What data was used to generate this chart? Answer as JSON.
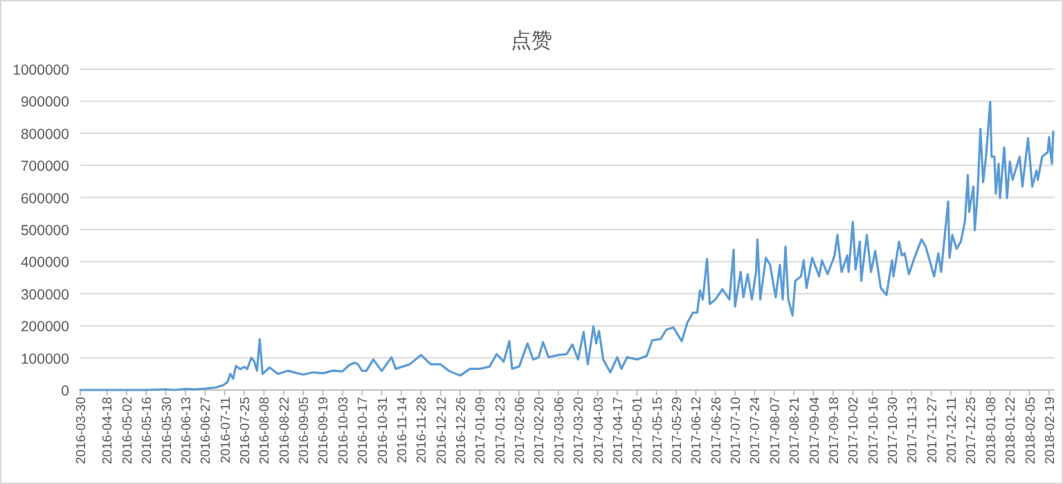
{
  "chart_data": {
    "type": "line",
    "title": "点赞",
    "x": [
      "2016-03-30",
      "2016-04-20",
      "2016-05-15",
      "2016-05-30",
      "2016-06-05",
      "2016-06-13",
      "2016-06-20",
      "2016-06-27",
      "2016-07-05",
      "2016-07-10",
      "2016-07-13",
      "2016-07-15",
      "2016-07-17",
      "2016-07-19",
      "2016-07-22",
      "2016-07-25",
      "2016-07-27",
      "2016-07-30",
      "2016-08-01",
      "2016-08-03",
      "2016-08-05",
      "2016-08-07",
      "2016-08-12",
      "2016-08-18",
      "2016-08-25",
      "2016-09-01",
      "2016-09-05",
      "2016-09-12",
      "2016-09-19",
      "2016-09-26",
      "2016-10-03",
      "2016-10-08",
      "2016-10-12",
      "2016-10-14",
      "2016-10-17",
      "2016-10-20",
      "2016-10-25",
      "2016-10-31",
      "2016-11-07",
      "2016-11-10",
      "2016-11-20",
      "2016-11-28",
      "2016-12-05",
      "2016-12-12",
      "2016-12-18",
      "2016-12-26",
      "2017-01-02",
      "2017-01-09",
      "2017-01-16",
      "2017-01-21",
      "2017-01-26",
      "2017-01-30",
      "2017-02-01",
      "2017-02-06",
      "2017-02-12",
      "2017-02-16",
      "2017-02-20",
      "2017-02-23",
      "2017-02-27",
      "2017-03-06",
      "2017-03-12",
      "2017-03-16",
      "2017-03-20",
      "2017-03-24",
      "2017-03-27",
      "2017-03-31",
      "2017-04-02",
      "2017-04-04",
      "2017-04-07",
      "2017-04-12",
      "2017-04-17",
      "2017-04-20",
      "2017-04-24",
      "2017-05-01",
      "2017-05-08",
      "2017-05-12",
      "2017-05-18",
      "2017-05-22",
      "2017-05-27",
      "2017-06-02",
      "2017-06-06",
      "2017-06-10",
      "2017-06-13",
      "2017-06-15",
      "2017-06-17",
      "2017-06-20",
      "2017-06-22",
      "2017-06-26",
      "2017-07-01",
      "2017-07-06",
      "2017-07-09",
      "2017-07-10",
      "2017-07-14",
      "2017-07-16",
      "2017-07-19",
      "2017-07-22",
      "2017-07-25",
      "2017-07-26",
      "2017-07-28",
      "2017-08-01",
      "2017-08-04",
      "2017-08-08",
      "2017-08-11",
      "2017-08-13",
      "2017-08-15",
      "2017-08-17",
      "2017-08-20",
      "2017-08-22",
      "2017-08-26",
      "2017-08-28",
      "2017-08-30",
      "2017-09-03",
      "2017-09-08",
      "2017-09-10",
      "2017-09-14",
      "2017-09-19",
      "2017-09-21",
      "2017-09-24",
      "2017-09-28",
      "2017-09-29",
      "2017-10-02",
      "2017-10-04",
      "2017-10-07",
      "2017-10-08",
      "2017-10-12",
      "2017-10-15",
      "2017-10-18",
      "2017-10-22",
      "2017-10-26",
      "2017-10-30",
      "2017-10-31",
      "2017-11-04",
      "2017-11-06",
      "2017-11-08",
      "2017-11-11",
      "2017-11-15",
      "2017-11-20",
      "2017-11-23",
      "2017-11-29",
      "2017-12-02",
      "2017-12-04",
      "2017-12-09",
      "2017-12-10",
      "2017-12-12",
      "2017-12-15",
      "2017-12-18",
      "2017-12-21",
      "2017-12-23",
      "2017-12-24",
      "2017-12-27",
      "2017-12-28",
      "2017-12-30",
      "2018-01-01",
      "2018-01-03",
      "2018-01-05",
      "2018-01-08",
      "2018-01-09",
      "2018-01-11",
      "2018-01-12",
      "2018-01-14",
      "2018-01-15",
      "2018-01-18",
      "2018-01-20",
      "2018-01-22",
      "2018-01-24",
      "2018-01-26",
      "2018-01-29",
      "2018-01-31",
      "2018-02-04",
      "2018-02-07",
      "2018-02-10",
      "2018-02-11",
      "2018-02-14",
      "2018-02-18",
      "2018-02-19",
      "2018-02-20",
      "2018-02-21",
      "2018-02-22"
    ],
    "series": [
      {
        "color": "#5b9bd5",
        "values": [
          0,
          0,
          0,
          2000,
          0,
          3000,
          2000,
          4000,
          8000,
          15000,
          25000,
          50000,
          35000,
          75000,
          65000,
          72000,
          65000,
          100000,
          90000,
          60000,
          158000,
          50000,
          70000,
          50000,
          60000,
          52000,
          48000,
          55000,
          52000,
          60000,
          58000,
          78000,
          85000,
          80000,
          60000,
          59000,
          95000,
          59000,
          102000,
          66000,
          80000,
          109000,
          80000,
          80000,
          59000,
          45000,
          66000,
          66000,
          73000,
          112000,
          88000,
          152000,
          66000,
          73000,
          145000,
          95000,
          102000,
          149000,
          102000,
          109000,
          112000,
          142000,
          95000,
          181000,
          80000,
          198000,
          145000,
          184000,
          95000,
          55000,
          102000,
          66000,
          102000,
          95000,
          106000,
          155000,
          159000,
          188000,
          195000,
          152000,
          210000,
          241000,
          241000,
          310000,
          282000,
          408000,
          268000,
          282000,
          314000,
          282000,
          437000,
          260000,
          368000,
          289000,
          361000,
          282000,
          368000,
          469000,
          282000,
          412000,
          390000,
          289000,
          390000,
          282000,
          447000,
          282000,
          232000,
          340000,
          354000,
          404000,
          318000,
          412000,
          354000,
          404000,
          361000,
          419000,
          483000,
          368000,
          419000,
          368000,
          524000,
          376000,
          462000,
          340000,
          483000,
          368000,
          433000,
          318000,
          296000,
          404000,
          354000,
          462000,
          419000,
          426000,
          361000,
          412000,
          469000,
          447000,
          354000,
          426000,
          368000,
          587000,
          412000,
          483000,
          440000,
          462000,
          527000,
          670000,
          555000,
          634000,
          498000,
          612000,
          814000,
          648000,
          727000,
          898000,
          727000,
          727000,
          612000,
          705000,
          598000,
          756000,
          598000,
          712000,
          655000,
          684000,
          727000,
          634000,
          785000,
          634000,
          684000,
          655000,
          727000,
          741000,
          788000,
          741000,
          705000,
          806000
        ]
      }
    ],
    "xlim": [
      "2016-03-30",
      "2018-02-23"
    ],
    "xticks": [
      "2016-03-30",
      "2016-04-18",
      "2016-05-02",
      "2016-05-16",
      "2016-05-30",
      "2016-06-13",
      "2016-06-27",
      "2016-07-11",
      "2016-07-25",
      "2016-08-08",
      "2016-08-22",
      "2016-09-05",
      "2016-09-19",
      "2016-10-03",
      "2016-10-17",
      "2016-10-31",
      "2016-11-14",
      "2016-11-28",
      "2016-12-12",
      "2016-12-26",
      "2017-01-09",
      "2017-01-23",
      "2017-02-06",
      "2017-02-20",
      "2017-03-06",
      "2017-03-20",
      "2017-04-03",
      "2017-04-17",
      "2017-05-01",
      "2017-05-15",
      "2017-05-29",
      "2017-06-12",
      "2017-06-26",
      "2017-07-10",
      "2017-07-24",
      "2017-08-07",
      "2017-08-21",
      "2017-09-04",
      "2017-09-18",
      "2017-10-02",
      "2017-10-16",
      "2017-10-30",
      "2017-11-13",
      "2017-11-27",
      "2017-12-11",
      "2017-12-25",
      "2018-01-08",
      "2018-01-22",
      "2018-02-05",
      "2018-02-19"
    ],
    "ylim": [
      0,
      1000000
    ],
    "yticks": [
      0,
      100000,
      200000,
      300000,
      400000,
      500000,
      600000,
      700000,
      800000,
      900000,
      1000000
    ],
    "grid": "y",
    "marker": "none",
    "line_style": "solid"
  }
}
